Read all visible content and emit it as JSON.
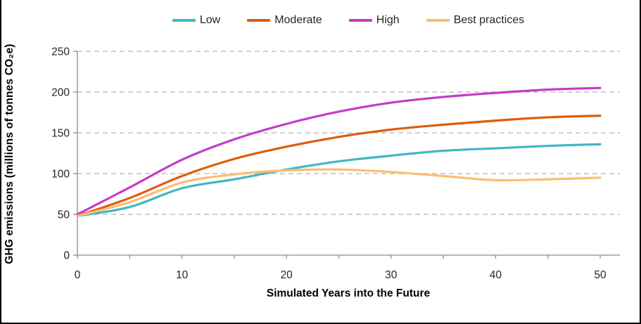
{
  "figure": {
    "y_axis_title": "GHG emissions (millions of tonnes CO₂e)",
    "x_axis_title": "Simulated Years into the Future"
  },
  "legend": {
    "position": "top-center",
    "items": [
      {
        "label": "Low",
        "color": "#3FB7C5"
      },
      {
        "label": "Moderate",
        "color": "#DC5E0B"
      },
      {
        "label": "High",
        "color": "#C63BC6"
      },
      {
        "label": "Best practices",
        "color": "#FBBD71"
      }
    ]
  },
  "chart_data": {
    "type": "line",
    "title": "",
    "xlabel": "Simulated Years into the Future",
    "ylabel": "GHG emissions (millions of tonnes CO₂e)",
    "x": [
      0,
      5,
      10,
      15,
      20,
      25,
      30,
      35,
      40,
      45,
      50
    ],
    "series": [
      {
        "name": "Low",
        "color": "#3FB7C5",
        "values": [
          48,
          59,
          82,
          93,
          105,
          115,
          122,
          128,
          131,
          134,
          136
        ]
      },
      {
        "name": "Moderate",
        "color": "#DC5E0B",
        "values": [
          48,
          70,
          97,
          118,
          133,
          145,
          154,
          160,
          165,
          169,
          171
        ]
      },
      {
        "name": "High",
        "color": "#C63BC6",
        "values": [
          50,
          83,
          117,
          142,
          161,
          176,
          187,
          194,
          199,
          203,
          205
        ]
      },
      {
        "name": "Best practices",
        "color": "#FBBD71",
        "values": [
          48,
          65,
          89,
          99,
          104,
          105,
          102,
          97,
          92,
          93,
          95
        ]
      }
    ],
    "xlim": [
      0,
      50
    ],
    "ylim": [
      0,
      250
    ],
    "y_ticks": [
      0,
      50,
      100,
      150,
      200,
      250
    ],
    "x_tick_labels": [
      0,
      10,
      20,
      30,
      40,
      50
    ],
    "x_minor_tick_step": 5,
    "grid": "horizontal dashed gray",
    "grid_color": "#BFBFBF",
    "axis_color": "#8C8C8C",
    "tick_label_color": "#262626",
    "legend_position": "top"
  }
}
